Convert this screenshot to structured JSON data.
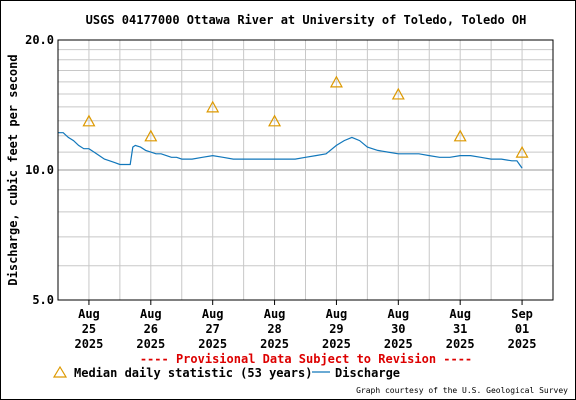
{
  "chart_data": {
    "type": "line",
    "title": "USGS 04177000 Ottawa River at University of Toledo, Toledo OH",
    "ylabel": "Discharge, cubic feet per second",
    "xlabel": "",
    "y_scale": "log",
    "ylim": [
      5.0,
      20.0
    ],
    "y_ticks": [
      {
        "value": 5.0,
        "label": "5.0"
      },
      {
        "value": 10.0,
        "label": "10.0"
      },
      {
        "value": 20.0,
        "label": "20.0"
      }
    ],
    "y_minor_ticks": [
      6,
      7,
      8,
      9,
      11,
      12,
      13,
      14,
      15,
      16,
      17,
      18,
      19
    ],
    "xlim": [
      "2025-08-24T12:00",
      "2025-09-01T12:00"
    ],
    "x_ticks": [
      {
        "t": "2025-08-25T00:00",
        "lines": [
          "Aug",
          "25",
          "2025"
        ]
      },
      {
        "t": "2025-08-26T00:00",
        "lines": [
          "Aug",
          "26",
          "2025"
        ]
      },
      {
        "t": "2025-08-27T00:00",
        "lines": [
          "Aug",
          "27",
          "2025"
        ]
      },
      {
        "t": "2025-08-28T00:00",
        "lines": [
          "Aug",
          "28",
          "2025"
        ]
      },
      {
        "t": "2025-08-29T00:00",
        "lines": [
          "Aug",
          "29",
          "2025"
        ]
      },
      {
        "t": "2025-08-30T00:00",
        "lines": [
          "Aug",
          "30",
          "2025"
        ]
      },
      {
        "t": "2025-08-31T00:00",
        "lines": [
          "Aug",
          "31",
          "2025"
        ]
      },
      {
        "t": "2025-09-01T00:00",
        "lines": [
          "Sep",
          "01",
          "2025"
        ]
      }
    ],
    "grid": true,
    "series": [
      {
        "name": "Discharge",
        "color": "#1177bb",
        "points": [
          [
            "2025-08-24T12:00",
            12.2
          ],
          [
            "2025-08-24T14:00",
            12.2
          ],
          [
            "2025-08-24T16:00",
            11.9
          ],
          [
            "2025-08-24T18:00",
            11.7
          ],
          [
            "2025-08-24T20:00",
            11.4
          ],
          [
            "2025-08-24T22:00",
            11.2
          ],
          [
            "2025-08-25T00:00",
            11.2
          ],
          [
            "2025-08-25T02:00",
            11.0
          ],
          [
            "2025-08-25T04:00",
            10.8
          ],
          [
            "2025-08-25T06:00",
            10.6
          ],
          [
            "2025-08-25T08:00",
            10.5
          ],
          [
            "2025-08-25T10:00",
            10.4
          ],
          [
            "2025-08-25T12:00",
            10.3
          ],
          [
            "2025-08-25T14:00",
            10.3
          ],
          [
            "2025-08-25T16:00",
            10.3
          ],
          [
            "2025-08-25T17:00",
            11.3
          ],
          [
            "2025-08-25T18:00",
            11.4
          ],
          [
            "2025-08-25T20:00",
            11.3
          ],
          [
            "2025-08-25T22:00",
            11.1
          ],
          [
            "2025-08-26T00:00",
            11.0
          ],
          [
            "2025-08-26T02:00",
            10.9
          ],
          [
            "2025-08-26T04:00",
            10.9
          ],
          [
            "2025-08-26T06:00",
            10.8
          ],
          [
            "2025-08-26T08:00",
            10.7
          ],
          [
            "2025-08-26T10:00",
            10.7
          ],
          [
            "2025-08-26T12:00",
            10.6
          ],
          [
            "2025-08-26T16:00",
            10.6
          ],
          [
            "2025-08-26T20:00",
            10.7
          ],
          [
            "2025-08-27T00:00",
            10.8
          ],
          [
            "2025-08-27T04:00",
            10.7
          ],
          [
            "2025-08-27T08:00",
            10.6
          ],
          [
            "2025-08-27T12:00",
            10.6
          ],
          [
            "2025-08-27T16:00",
            10.6
          ],
          [
            "2025-08-27T20:00",
            10.6
          ],
          [
            "2025-08-28T00:00",
            10.6
          ],
          [
            "2025-08-28T04:00",
            10.6
          ],
          [
            "2025-08-28T08:00",
            10.6
          ],
          [
            "2025-08-28T12:00",
            10.7
          ],
          [
            "2025-08-28T16:00",
            10.8
          ],
          [
            "2025-08-28T20:00",
            10.9
          ],
          [
            "2025-08-29T00:00",
            11.4
          ],
          [
            "2025-08-29T03:00",
            11.7
          ],
          [
            "2025-08-29T06:00",
            11.9
          ],
          [
            "2025-08-29T09:00",
            11.7
          ],
          [
            "2025-08-29T12:00",
            11.3
          ],
          [
            "2025-08-29T16:00",
            11.1
          ],
          [
            "2025-08-29T20:00",
            11.0
          ],
          [
            "2025-08-30T00:00",
            10.9
          ],
          [
            "2025-08-30T04:00",
            10.9
          ],
          [
            "2025-08-30T08:00",
            10.9
          ],
          [
            "2025-08-30T12:00",
            10.8
          ],
          [
            "2025-08-30T16:00",
            10.7
          ],
          [
            "2025-08-30T20:00",
            10.7
          ],
          [
            "2025-08-31T00:00",
            10.8
          ],
          [
            "2025-08-31T04:00",
            10.8
          ],
          [
            "2025-08-31T08:00",
            10.7
          ],
          [
            "2025-08-31T12:00",
            10.6
          ],
          [
            "2025-08-31T16:00",
            10.6
          ],
          [
            "2025-08-31T20:00",
            10.5
          ],
          [
            "2025-08-31T22:00",
            10.5
          ],
          [
            "2025-08-31T23:00",
            10.3
          ],
          [
            "2025-09-01T00:00",
            10.1
          ]
        ]
      },
      {
        "name": "Median daily statistic (53 years)",
        "color": "#dd9900",
        "marker": "triangle",
        "points": [
          [
            "2025-08-25T00:00",
            13.0
          ],
          [
            "2025-08-26T00:00",
            12.0
          ],
          [
            "2025-08-27T00:00",
            14.0
          ],
          [
            "2025-08-28T00:00",
            13.0
          ],
          [
            "2025-08-29T00:00",
            16.0
          ],
          [
            "2025-08-30T00:00",
            15.0
          ],
          [
            "2025-08-31T00:00",
            12.0
          ],
          [
            "2025-09-01T00:00",
            11.0
          ]
        ]
      }
    ],
    "annotations": {
      "provisional": "---- Provisional Data Subject to Revision ----",
      "credit": "Graph courtesy of the U.S. Geological Survey"
    },
    "legend": {
      "position": "bottom",
      "items": [
        {
          "label": "Median daily statistic (53 years)",
          "marker": "triangle",
          "color": "#dd9900"
        },
        {
          "label": "Discharge",
          "marker": "line",
          "color": "#1177bb"
        }
      ]
    }
  }
}
